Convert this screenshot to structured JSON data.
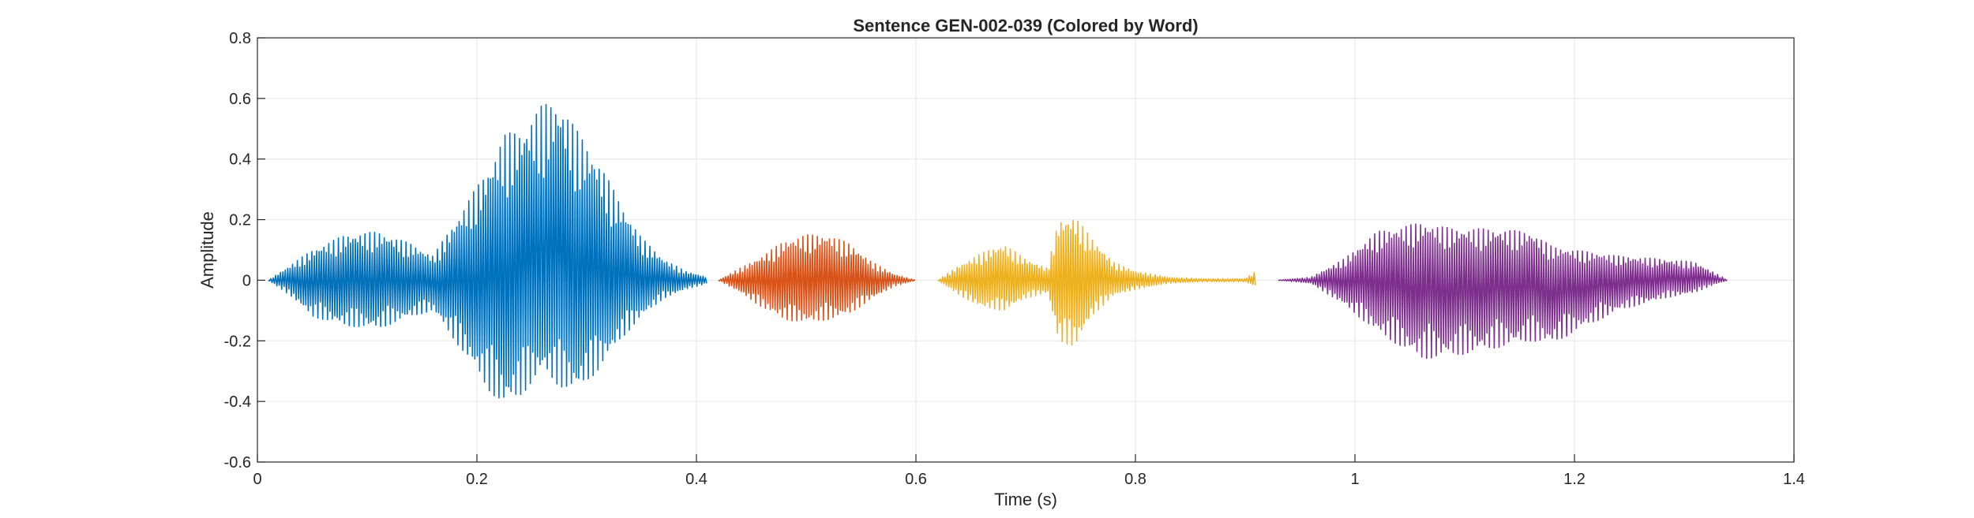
{
  "chart_data": {
    "type": "line",
    "title": "Sentence GEN-002-039 (Colored by Word)",
    "xlabel": "Time (s)",
    "ylabel": "Amplitude",
    "xlim": [
      0,
      1.4
    ],
    "ylim": [
      -0.6,
      0.8
    ],
    "xticks": [
      0,
      0.2,
      0.4,
      0.6,
      0.8,
      1,
      1.2,
      1.4
    ],
    "yticks": [
      -0.6,
      -0.4,
      -0.2,
      0,
      0.2,
      0.4,
      0.6,
      0.8
    ],
    "grid": true,
    "legend": "none",
    "series": [
      {
        "color": "#0072BD",
        "x": [
          0.01,
          0.03,
          0.05,
          0.08,
          0.11,
          0.14,
          0.16,
          0.19,
          0.21,
          0.225,
          0.24,
          0.26,
          0.275,
          0.29,
          0.31,
          0.33,
          0.35,
          0.37,
          0.39,
          0.41
        ],
        "upper": [
          0.0,
          0.05,
          0.1,
          0.15,
          0.16,
          0.12,
          0.08,
          0.25,
          0.37,
          0.48,
          0.5,
          0.58,
          0.6,
          0.5,
          0.4,
          0.26,
          0.14,
          0.07,
          0.03,
          0.01
        ],
        "lower": [
          0.0,
          -0.05,
          -0.12,
          -0.15,
          -0.16,
          -0.12,
          -0.1,
          -0.25,
          -0.36,
          -0.42,
          -0.38,
          -0.3,
          -0.35,
          -0.37,
          -0.3,
          -0.2,
          -0.12,
          -0.06,
          -0.03,
          -0.01
        ]
      },
      {
        "color": "#D95319",
        "x": [
          0.42,
          0.44,
          0.46,
          0.48,
          0.5,
          0.52,
          0.54,
          0.56,
          0.58,
          0.6
        ],
        "upper": [
          0.0,
          0.04,
          0.08,
          0.13,
          0.15,
          0.15,
          0.12,
          0.06,
          0.02,
          0.0
        ],
        "lower": [
          0.0,
          -0.04,
          -0.09,
          -0.13,
          -0.14,
          -0.13,
          -0.11,
          -0.06,
          -0.02,
          0.0
        ]
      },
      {
        "color": "#EDB120",
        "x": [
          0.62,
          0.64,
          0.66,
          0.68,
          0.7,
          0.72,
          0.73,
          0.745,
          0.76,
          0.78,
          0.8,
          0.83,
          0.86,
          0.88,
          0.9,
          0.91
        ],
        "upper": [
          0.0,
          0.05,
          0.09,
          0.12,
          0.07,
          0.04,
          0.2,
          0.21,
          0.14,
          0.06,
          0.03,
          0.01,
          0.005,
          0.005,
          0.005,
          0.03
        ],
        "lower": [
          0.0,
          -0.05,
          -0.09,
          -0.1,
          -0.06,
          -0.04,
          -0.2,
          -0.22,
          -0.12,
          -0.05,
          -0.03,
          -0.01,
          -0.005,
          -0.005,
          -0.005,
          -0.02
        ]
      },
      {
        "color": "#7E2F8E",
        "x": [
          0.93,
          0.96,
          0.99,
          1.02,
          1.06,
          1.09,
          1.12,
          1.16,
          1.18,
          1.2,
          1.24,
          1.28,
          1.31,
          1.33,
          1.34
        ],
        "upper": [
          0.0,
          0.01,
          0.07,
          0.16,
          0.19,
          0.17,
          0.17,
          0.16,
          0.11,
          0.1,
          0.08,
          0.07,
          0.06,
          0.02,
          0.0
        ],
        "lower": [
          0.0,
          -0.01,
          -0.08,
          -0.17,
          -0.26,
          -0.25,
          -0.23,
          -0.2,
          -0.21,
          -0.17,
          -0.1,
          -0.06,
          -0.04,
          -0.01,
          0.0
        ]
      }
    ]
  }
}
